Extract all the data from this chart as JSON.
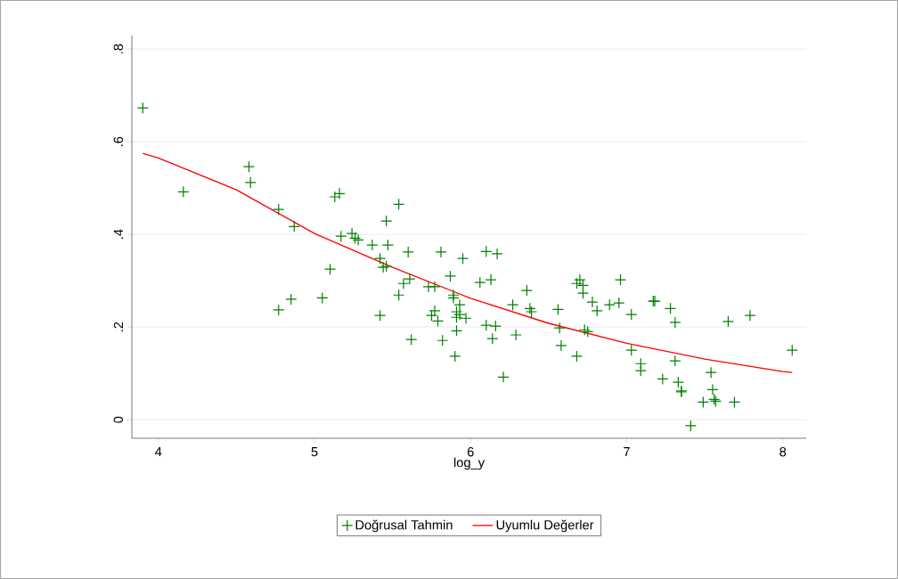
{
  "chart_data": {
    "type": "scatter",
    "xlabel": "log_y",
    "xlim": [
      3.83,
      8.15
    ],
    "ylim": [
      -0.04,
      0.829
    ],
    "xticks": [
      4,
      5,
      6,
      7,
      8
    ],
    "yticks": [
      0,
      {
        "value": 0.2,
        "label": ".2"
      },
      {
        "value": 0.4,
        "label": ".4"
      },
      {
        "value": 0.6,
        "label": ".6"
      },
      {
        "value": 0.8,
        "label": ".8"
      }
    ],
    "grid": "y",
    "legend": "bottom",
    "marker": "cross",
    "series": [
      {
        "name": "Doğrusal Tahmin",
        "color": "#008000",
        "x": [
          3.9,
          4.16,
          4.58,
          4.59,
          4.77,
          4.87,
          4.77,
          4.85,
          5.05,
          5.1,
          5.13,
          5.16,
          5.17,
          5.24,
          5.26,
          5.28,
          5.37,
          5.42,
          5.42,
          5.44,
          5.46,
          5.46,
          5.47,
          5.54,
          5.54,
          5.57,
          5.6,
          5.61,
          5.62,
          5.73,
          5.77,
          5.75,
          5.77,
          5.79,
          5.81,
          5.82,
          5.87,
          5.89,
          5.89,
          5.91,
          5.91,
          5.93,
          5.91,
          5.9,
          5.93,
          5.95,
          5.97,
          6.06,
          6.1,
          6.1,
          6.13,
          6.14,
          6.16,
          6.17,
          6.21,
          6.27,
          6.29,
          6.36,
          6.38,
          6.39,
          6.56,
          6.57,
          6.58,
          6.68,
          6.68,
          6.7,
          6.72,
          6.72,
          6.73,
          6.75,
          6.78,
          6.81,
          6.89,
          6.95,
          6.96,
          7.03,
          7.03,
          7.09,
          7.09,
          7.17,
          7.18,
          7.23,
          7.28,
          7.31,
          7.31,
          7.33,
          7.35,
          7.35,
          7.41,
          7.49,
          7.54,
          7.55,
          7.56,
          7.57,
          7.65,
          7.69,
          7.79,
          8.06
        ],
        "values": [
          0.673,
          0.492,
          0.546,
          0.512,
          0.454,
          0.417,
          0.237,
          0.26,
          0.263,
          0.325,
          0.481,
          0.488,
          0.396,
          0.402,
          0.392,
          0.388,
          0.377,
          0.348,
          0.225,
          0.329,
          0.331,
          0.429,
          0.377,
          0.465,
          0.269,
          0.294,
          0.362,
          0.304,
          0.173,
          0.287,
          0.287,
          0.225,
          0.235,
          0.213,
          0.362,
          0.171,
          0.31,
          0.269,
          0.263,
          0.233,
          0.221,
          0.248,
          0.192,
          0.137,
          0.227,
          0.348,
          0.219,
          0.296,
          0.363,
          0.204,
          0.302,
          0.175,
          0.202,
          0.358,
          0.092,
          0.248,
          0.183,
          0.279,
          0.24,
          0.233,
          0.238,
          0.198,
          0.16,
          0.137,
          0.294,
          0.302,
          0.29,
          0.273,
          0.194,
          0.19,
          0.254,
          0.235,
          0.248,
          0.252,
          0.302,
          0.227,
          0.15,
          0.121,
          0.106,
          0.256,
          0.256,
          0.088,
          0.24,
          0.21,
          0.127,
          0.081,
          0.062,
          0.06,
          -0.013,
          0.038,
          0.102,
          0.065,
          0.044,
          0.04,
          0.212,
          0.038,
          0.225,
          0.15
        ]
      },
      {
        "name": "Uyumlu Değerler",
        "color": "#ff0000",
        "type": "line",
        "line_style": "solid",
        "marker": "none",
        "x": [
          3.9,
          4.0,
          4.5,
          5.0,
          5.5,
          6.0,
          6.5,
          7.0,
          7.5,
          8.0,
          8.06
        ],
        "values": [
          0.575,
          0.565,
          0.496,
          0.402,
          0.329,
          0.262,
          0.208,
          0.165,
          0.131,
          0.104,
          0.102
        ]
      }
    ]
  }
}
